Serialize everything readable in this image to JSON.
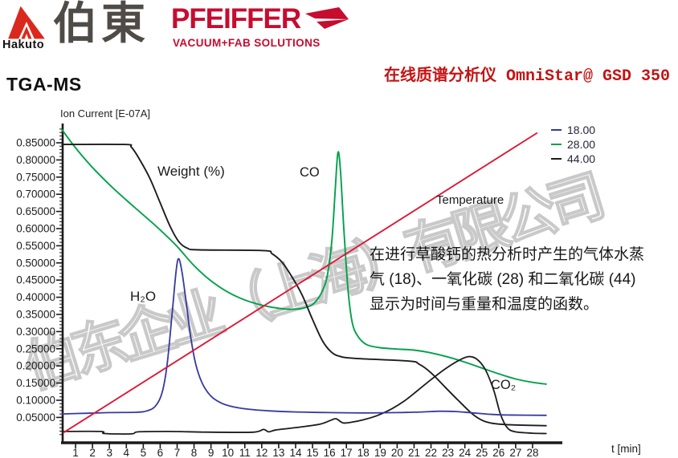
{
  "header": {
    "hakuto_logo_text": "Hakuto",
    "hakuto_cn": "伯東",
    "pfeiffer": "PFEIFFER",
    "pfeiffer_tagline": "VACUUM+FAB SOLUTIONS"
  },
  "title": "TGA-MS",
  "product_title": "在线质谱分析仪 OmniStar@ GSD 350",
  "watermark": "伯东企业（上海）有限公司",
  "annotation": {
    "line1": "在进行草酸钙的热分析时产生的气体水蒸",
    "line2": "气 (18)、一氧化碳 (28) 和二氧化碳 (44)",
    "line3": "显示为时间与重量和温度的函数。"
  },
  "colors": {
    "brand_red": "#c60c2f",
    "hakuto_red": "#da291c",
    "product_red": "#c41414",
    "axis_black": "#1a1a1a",
    "watermark_gray": "#c9c9c9",
    "series_blue": "#3539a0",
    "series_green": "#00a14b",
    "series_black": "#1c1c1c",
    "series_red": "#dc1936"
  },
  "chart_data": {
    "type": "line",
    "title": "",
    "ylabel": "Ion Current [E-07A]",
    "xlabel": "t [min]",
    "xlim": [
      0,
      29.8
    ],
    "ylim": [
      -0.03,
      0.9
    ],
    "grid": false,
    "legend_position": "top-right",
    "x_ticks": [
      1,
      2,
      3,
      4,
      5,
      6,
      7,
      8,
      9,
      10,
      11,
      12,
      13,
      14,
      15,
      16,
      17,
      18,
      19,
      20,
      21,
      22,
      23,
      24,
      25,
      26,
      27,
      28
    ],
    "y_ticks": [
      "0.85000",
      "0.80000",
      "0.75000",
      "0.70000",
      "0.65000",
      "0.60000",
      "0.55000",
      "0.50000",
      "0.45000",
      "0.40000",
      "0.35000",
      "0.30000",
      "0.25000",
      "0.20000",
      "0.15000",
      "0.10000",
      "0.05000"
    ],
    "legend": [
      {
        "label": "18.00",
        "color": "#3539a0"
      },
      {
        "label": "28.00",
        "color": "#00a14b"
      },
      {
        "label": "44.00",
        "color": "#1c1c1c"
      }
    ],
    "labels": {
      "weight": "Weight (%)",
      "co": "CO",
      "h2o": "H₂O",
      "co2": "CO₂",
      "temperature": "Temperature"
    },
    "series": [
      {
        "name": "co-28",
        "color": "#00a14b",
        "width": 1.9,
        "points": [
          [
            0.2,
            0.888
          ],
          [
            1,
            0.835
          ],
          [
            2,
            0.778
          ],
          [
            3,
            0.728
          ],
          [
            4,
            0.683
          ],
          [
            5,
            0.64
          ],
          [
            6,
            0.596
          ],
          [
            7,
            0.548
          ],
          [
            8,
            0.492
          ],
          [
            9,
            0.448
          ],
          [
            10,
            0.415
          ],
          [
            11,
            0.392
          ],
          [
            12,
            0.377
          ],
          [
            13,
            0.368
          ],
          [
            13.8,
            0.365
          ],
          [
            14.5,
            0.369
          ],
          [
            15.1,
            0.383
          ],
          [
            15.6,
            0.42
          ],
          [
            15.9,
            0.47
          ],
          [
            16.15,
            0.57
          ],
          [
            16.35,
            0.72
          ],
          [
            16.5,
            0.822
          ],
          [
            16.65,
            0.77
          ],
          [
            16.85,
            0.6
          ],
          [
            17.1,
            0.42
          ],
          [
            17.35,
            0.325
          ],
          [
            17.7,
            0.285
          ],
          [
            18.2,
            0.262
          ],
          [
            19,
            0.253
          ],
          [
            20,
            0.249
          ],
          [
            21,
            0.246
          ],
          [
            22,
            0.238
          ],
          [
            23,
            0.226
          ],
          [
            24,
            0.211
          ],
          [
            25,
            0.194
          ],
          [
            26,
            0.177
          ],
          [
            27,
            0.162
          ],
          [
            28,
            0.152
          ],
          [
            28.8,
            0.147
          ]
        ]
      },
      {
        "name": "weight",
        "color": "#1c1c1c",
        "width": 1.9,
        "points": [
          [
            0.2,
            0.845
          ],
          [
            3.9,
            0.845
          ],
          [
            4.3,
            0.837
          ],
          [
            4.8,
            0.8
          ],
          [
            5.4,
            0.745
          ],
          [
            6.0,
            0.675
          ],
          [
            6.6,
            0.605
          ],
          [
            7.1,
            0.562
          ],
          [
            7.6,
            0.543
          ],
          [
            8.3,
            0.538
          ],
          [
            12.1,
            0.536
          ],
          [
            12.6,
            0.527
          ],
          [
            13.2,
            0.502
          ],
          [
            13.8,
            0.458
          ],
          [
            14.4,
            0.405
          ],
          [
            15.0,
            0.335
          ],
          [
            15.6,
            0.272
          ],
          [
            16.1,
            0.241
          ],
          [
            16.6,
            0.228
          ],
          [
            17.5,
            0.222
          ],
          [
            20.7,
            0.214
          ],
          [
            21.3,
            0.205
          ],
          [
            22.0,
            0.18
          ],
          [
            22.8,
            0.14
          ],
          [
            23.6,
            0.1
          ],
          [
            24.4,
            0.062
          ],
          [
            25.0,
            0.042
          ],
          [
            25.6,
            0.033
          ],
          [
            26.5,
            0.029
          ],
          [
            28.8,
            0.026
          ]
        ]
      },
      {
        "name": "co2-44",
        "color": "#1c1c1c",
        "width": 1.8,
        "points": [
          [
            0.2,
            0.009
          ],
          [
            2.5,
            0.009
          ],
          [
            2.7,
            0.003
          ],
          [
            4.3,
            0.002
          ],
          [
            4.7,
            0.008
          ],
          [
            6.5,
            0.009
          ],
          [
            9.0,
            0.007
          ],
          [
            11.5,
            0.007
          ],
          [
            12.1,
            0.015
          ],
          [
            12.4,
            0.008
          ],
          [
            12.8,
            0.013
          ],
          [
            13.6,
            0.018
          ],
          [
            14.6,
            0.024
          ],
          [
            15.5,
            0.031
          ],
          [
            16.1,
            0.042
          ],
          [
            16.4,
            0.046
          ],
          [
            16.8,
            0.034
          ],
          [
            17.3,
            0.036
          ],
          [
            18.0,
            0.043
          ],
          [
            18.8,
            0.055
          ],
          [
            19.6,
            0.073
          ],
          [
            20.4,
            0.097
          ],
          [
            21.2,
            0.128
          ],
          [
            22.0,
            0.16
          ],
          [
            22.8,
            0.19
          ],
          [
            23.6,
            0.215
          ],
          [
            24.2,
            0.227
          ],
          [
            24.7,
            0.22
          ],
          [
            25.2,
            0.19
          ],
          [
            25.7,
            0.13
          ],
          [
            26.1,
            0.06
          ],
          [
            26.5,
            0.02
          ],
          [
            27.0,
            0.008
          ],
          [
            28.0,
            0.004
          ],
          [
            28.8,
            0.003
          ]
        ]
      },
      {
        "name": "h2o-18",
        "color": "#3539a0",
        "width": 1.8,
        "points": [
          [
            0.2,
            0.06
          ],
          [
            1.5,
            0.062
          ],
          [
            3.0,
            0.064
          ],
          [
            4.6,
            0.065
          ],
          [
            5.2,
            0.069
          ],
          [
            5.7,
            0.082
          ],
          [
            6.1,
            0.12
          ],
          [
            6.4,
            0.2
          ],
          [
            6.7,
            0.35
          ],
          [
            6.95,
            0.48
          ],
          [
            7.1,
            0.512
          ],
          [
            7.3,
            0.47
          ],
          [
            7.55,
            0.38
          ],
          [
            7.8,
            0.285
          ],
          [
            8.1,
            0.205
          ],
          [
            8.5,
            0.148
          ],
          [
            9.0,
            0.112
          ],
          [
            9.6,
            0.092
          ],
          [
            10.3,
            0.081
          ],
          [
            11.2,
            0.074
          ],
          [
            12.5,
            0.069
          ],
          [
            14.0,
            0.066
          ],
          [
            16.0,
            0.064
          ],
          [
            18.0,
            0.063
          ],
          [
            20.0,
            0.064
          ],
          [
            21.5,
            0.066
          ],
          [
            22.5,
            0.068
          ],
          [
            23.5,
            0.067
          ],
          [
            24.5,
            0.063
          ],
          [
            25.5,
            0.059
          ],
          [
            26.5,
            0.057
          ],
          [
            28.8,
            0.056
          ]
        ]
      },
      {
        "name": "temperature",
        "color": "#dc1936",
        "width": 1.9,
        "points": [
          [
            0.3,
            0.006
          ],
          [
            28.25,
            0.878
          ]
        ]
      }
    ]
  }
}
